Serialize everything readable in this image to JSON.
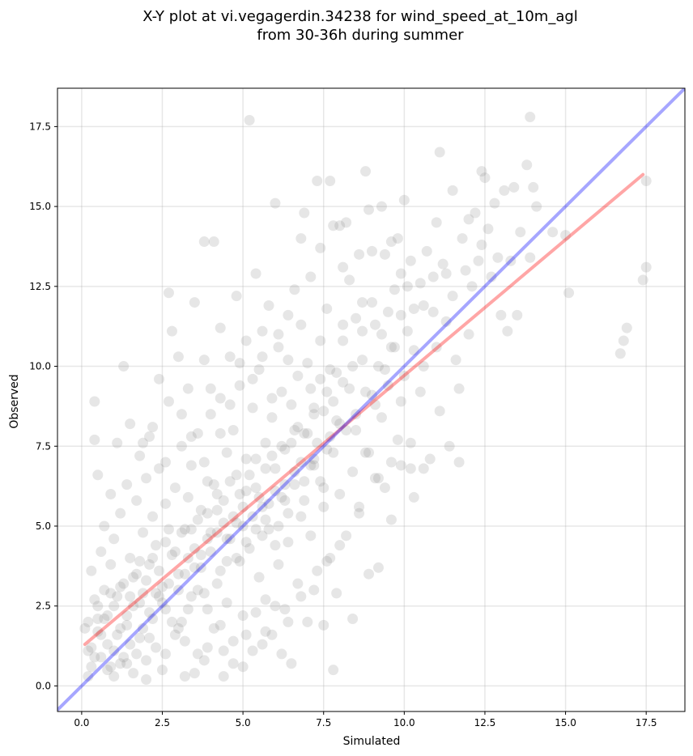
{
  "chart_data": {
    "type": "scatter",
    "title_line1": "X-Y plot at vi.vegagerdin.34238 for wind_speed_at_10m_agl",
    "title_line2": "from 30-36h during summer",
    "xlabel": "Simulated",
    "ylabel": "Observed",
    "xlim": [
      -0.75,
      18.7
    ],
    "ylim": [
      -0.8,
      18.7
    ],
    "xticks": [
      0.0,
      2.5,
      5.0,
      7.5,
      10.0,
      12.5,
      15.0,
      17.5
    ],
    "yticks": [
      0.0,
      2.5,
      5.0,
      7.5,
      10.0,
      12.5,
      15.0,
      17.5
    ],
    "xtick_labels": [
      "0.0",
      "2.5",
      "5.0",
      "7.5",
      "10.0",
      "12.5",
      "15.0",
      "17.5"
    ],
    "ytick_labels": [
      "0.0",
      "2.5",
      "5.0",
      "7.5",
      "10.0",
      "12.5",
      "15.0",
      "17.5"
    ],
    "grid": true,
    "point_color": "#808080",
    "identity_line": {
      "x": [
        -0.75,
        18.7
      ],
      "y": [
        -0.75,
        18.7
      ],
      "color": "#0000ff"
    },
    "fit_line": {
      "x": [
        0.1,
        17.4
      ],
      "y": [
        1.3,
        16.0
      ],
      "color": "#ff0000"
    },
    "points": [
      [
        0.1,
        1.8
      ],
      [
        0.2,
        0.3
      ],
      [
        0.2,
        2.0
      ],
      [
        0.3,
        1.2
      ],
      [
        0.3,
        3.6
      ],
      [
        0.4,
        0.9
      ],
      [
        0.4,
        8.9
      ],
      [
        0.4,
        7.7
      ],
      [
        0.5,
        2.5
      ],
      [
        0.5,
        6.6
      ],
      [
        0.6,
        4.2
      ],
      [
        0.6,
        1.6
      ],
      [
        0.7,
        3.0
      ],
      [
        0.7,
        5.0
      ],
      [
        0.8,
        0.5
      ],
      [
        0.8,
        2.2
      ],
      [
        0.9,
        6.0
      ],
      [
        0.9,
        3.8
      ],
      [
        1.0,
        1.1
      ],
      [
        1.0,
        4.6
      ],
      [
        1.1,
        2.8
      ],
      [
        1.1,
        7.6
      ],
      [
        1.2,
        0.7
      ],
      [
        1.2,
        5.4
      ],
      [
        1.3,
        10.0
      ],
      [
        1.3,
        3.2
      ],
      [
        1.4,
        1.9
      ],
      [
        1.4,
        6.3
      ],
      [
        1.5,
        8.2
      ],
      [
        1.5,
        4.0
      ],
      [
        1.6,
        2.5
      ],
      [
        1.6,
        0.4
      ],
      [
        1.7,
        5.8
      ],
      [
        1.7,
        3.5
      ],
      [
        1.8,
        7.2
      ],
      [
        1.8,
        1.5
      ],
      [
        1.9,
        4.8
      ],
      [
        1.9,
        2.9
      ],
      [
        2.0,
        6.5
      ],
      [
        2.0,
        0.8
      ],
      [
        2.1,
        3.8
      ],
      [
        2.1,
        7.8
      ],
      [
        2.2,
        2.1
      ],
      [
        2.2,
        5.3
      ],
      [
        2.3,
        1.2
      ],
      [
        2.3,
        4.4
      ],
      [
        2.4,
        9.6
      ],
      [
        2.4,
        6.8
      ],
      [
        2.5,
        3.1
      ],
      [
        2.5,
        0.5
      ],
      [
        2.6,
        5.7
      ],
      [
        2.6,
        2.4
      ],
      [
        2.7,
        8.9
      ],
      [
        2.7,
        12.3
      ],
      [
        2.8,
        11.1
      ],
      [
        2.8,
        4.1
      ],
      [
        2.9,
        1.6
      ],
      [
        2.9,
        6.2
      ],
      [
        3.0,
        3.5
      ],
      [
        3.0,
        10.3
      ],
      [
        3.1,
        2.0
      ],
      [
        3.1,
        7.5
      ],
      [
        3.2,
        4.9
      ],
      [
        3.2,
        0.3
      ],
      [
        3.3,
        9.3
      ],
      [
        3.3,
        5.9
      ],
      [
        3.4,
        2.8
      ],
      [
        3.4,
        6.9
      ],
      [
        3.5,
        12.0
      ],
      [
        3.5,
        4.3
      ],
      [
        3.6,
        1.0
      ],
      [
        3.6,
        7.9
      ],
      [
        3.7,
        3.7
      ],
      [
        3.7,
        5.5
      ],
      [
        3.8,
        13.9
      ],
      [
        3.8,
        10.2
      ],
      [
        3.9,
        2.4
      ],
      [
        3.9,
        6.4
      ],
      [
        4.0,
        4.8
      ],
      [
        4.0,
        8.5
      ],
      [
        4.1,
        13.9
      ],
      [
        4.1,
        1.8
      ],
      [
        4.2,
        6.0
      ],
      [
        4.2,
        3.2
      ],
      [
        4.3,
        11.2
      ],
      [
        4.3,
        9.0
      ],
      [
        4.4,
        5.1
      ],
      [
        4.4,
        0.3
      ],
      [
        4.5,
        7.3
      ],
      [
        4.5,
        2.6
      ],
      [
        4.6,
        10.3
      ],
      [
        4.6,
        4.6
      ],
      [
        4.7,
        8.0
      ],
      [
        4.7,
        1.4
      ],
      [
        4.8,
        6.6
      ],
      [
        4.8,
        12.2
      ],
      [
        4.9,
        3.9
      ],
      [
        4.9,
        9.4
      ],
      [
        5.0,
        5.0
      ],
      [
        5.0,
        2.2
      ],
      [
        5.1,
        10.8
      ],
      [
        5.1,
        7.1
      ],
      [
        5.2,
        17.7
      ],
      [
        5.2,
        4.3
      ],
      [
        5.3,
        8.7
      ],
      [
        5.3,
        1.1
      ],
      [
        5.4,
        12.9
      ],
      [
        5.4,
        6.2
      ],
      [
        5.5,
        3.4
      ],
      [
        5.5,
        9.9
      ],
      [
        5.6,
        5.6
      ],
      [
        5.6,
        11.1
      ],
      [
        5.7,
        7.6
      ],
      [
        5.7,
        2.7
      ],
      [
        5.8,
        11.9
      ],
      [
        5.8,
        4.9
      ],
      [
        5.9,
        8.4
      ],
      [
        5.9,
        1.6
      ],
      [
        6.0,
        15.1
      ],
      [
        6.0,
        6.8
      ],
      [
        6.1,
        3.8
      ],
      [
        6.1,
        10.6
      ],
      [
        6.2,
        5.9
      ],
      [
        6.2,
        9.2
      ],
      [
        6.3,
        2.4
      ],
      [
        6.3,
        7.4
      ],
      [
        6.4,
        11.6
      ],
      [
        6.4,
        4.5
      ],
      [
        6.5,
        0.7
      ],
      [
        6.5,
        8.8
      ],
      [
        6.6,
        6.3
      ],
      [
        6.6,
        12.4
      ],
      [
        6.7,
        3.2
      ],
      [
        6.7,
        9.7
      ],
      [
        6.8,
        14.0
      ],
      [
        6.8,
        5.3
      ],
      [
        6.9,
        14.8
      ],
      [
        6.9,
        7.9
      ],
      [
        7.0,
        2.0
      ],
      [
        7.0,
        10.1
      ],
      [
        7.1,
        4.7
      ],
      [
        7.1,
        12.8
      ],
      [
        7.2,
        6.9
      ],
      [
        7.2,
        8.5
      ],
      [
        7.3,
        15.8
      ],
      [
        7.3,
        3.6
      ],
      [
        7.4,
        13.7
      ],
      [
        7.4,
        9.6
      ],
      [
        7.5,
        5.6
      ],
      [
        7.5,
        1.9
      ],
      [
        7.6,
        11.8
      ],
      [
        7.6,
        7.4
      ],
      [
        7.7,
        15.8
      ],
      [
        7.7,
        4.0
      ],
      [
        7.8,
        14.4
      ],
      [
        7.8,
        0.5
      ],
      [
        7.9,
        2.9
      ],
      [
        7.9,
        8.3
      ],
      [
        8.0,
        14.4
      ],
      [
        8.0,
        6.0
      ],
      [
        8.1,
        13.1
      ],
      [
        8.1,
        10.8
      ],
      [
        8.2,
        14.5
      ],
      [
        8.2,
        4.7
      ],
      [
        8.3,
        9.3
      ],
      [
        8.3,
        12.7
      ],
      [
        8.4,
        2.1
      ],
      [
        8.4,
        6.7
      ],
      [
        8.5,
        11.5
      ],
      [
        8.5,
        8.0
      ],
      [
        8.6,
        13.5
      ],
      [
        8.6,
        5.4
      ],
      [
        8.7,
        10.2
      ],
      [
        8.7,
        12.0
      ],
      [
        8.8,
        16.1
      ],
      [
        8.8,
        7.3
      ],
      [
        8.9,
        14.9
      ],
      [
        8.9,
        3.5
      ],
      [
        9.0,
        9.1
      ],
      [
        9.0,
        13.6
      ],
      [
        9.1,
        6.5
      ],
      [
        9.1,
        11.3
      ],
      [
        9.2,
        3.7
      ],
      [
        9.2,
        10.0
      ],
      [
        9.3,
        15.0
      ],
      [
        9.3,
        8.4
      ],
      [
        9.4,
        13.5
      ],
      [
        9.4,
        6.2
      ],
      [
        9.5,
        11.7
      ],
      [
        9.5,
        9.4
      ],
      [
        9.6,
        7.0
      ],
      [
        9.6,
        13.9
      ],
      [
        9.7,
        12.4
      ],
      [
        9.7,
        10.6
      ],
      [
        9.8,
        14.0
      ],
      [
        9.8,
        7.7
      ],
      [
        9.9,
        8.9
      ],
      [
        9.9,
        12.9
      ],
      [
        10.0,
        15.2
      ],
      [
        10.0,
        9.7
      ],
      [
        10.1,
        11.1
      ],
      [
        10.1,
        12.5
      ],
      [
        10.2,
        6.8
      ],
      [
        10.2,
        13.3
      ],
      [
        10.3,
        5.9
      ],
      [
        10.3,
        10.5
      ],
      [
        10.5,
        9.2
      ],
      [
        10.5,
        12.6
      ],
      [
        10.6,
        11.9
      ],
      [
        10.7,
        13.6
      ],
      [
        10.8,
        7.1
      ],
      [
        10.9,
        12.8
      ],
      [
        11.0,
        10.6
      ],
      [
        11.0,
        14.5
      ],
      [
        11.1,
        16.7
      ],
      [
        11.1,
        8.6
      ],
      [
        11.2,
        13.2
      ],
      [
        11.3,
        11.4
      ],
      [
        11.4,
        7.5
      ],
      [
        11.5,
        15.5
      ],
      [
        11.5,
        12.2
      ],
      [
        11.6,
        10.2
      ],
      [
        11.7,
        9.3
      ],
      [
        11.7,
        7.0
      ],
      [
        11.8,
        14.0
      ],
      [
        11.9,
        13.0
      ],
      [
        12.0,
        14.6
      ],
      [
        12.0,
        11.0
      ],
      [
        12.1,
        12.5
      ],
      [
        12.2,
        14.8
      ],
      [
        12.3,
        13.3
      ],
      [
        12.4,
        16.1
      ],
      [
        12.4,
        13.8
      ],
      [
        12.5,
        15.9
      ],
      [
        12.6,
        14.3
      ],
      [
        12.7,
        12.8
      ],
      [
        12.8,
        15.1
      ],
      [
        12.9,
        13.4
      ],
      [
        13.0,
        11.6
      ],
      [
        13.1,
        15.5
      ],
      [
        13.2,
        11.1
      ],
      [
        13.3,
        13.3
      ],
      [
        13.4,
        15.6
      ],
      [
        13.5,
        11.6
      ],
      [
        13.6,
        14.2
      ],
      [
        13.8,
        16.3
      ],
      [
        13.9,
        17.8
      ],
      [
        13.9,
        13.4
      ],
      [
        14.0,
        15.6
      ],
      [
        14.1,
        15.0
      ],
      [
        14.6,
        14.2
      ],
      [
        15.0,
        14.1
      ],
      [
        15.1,
        12.3
      ],
      [
        16.7,
        10.4
      ],
      [
        16.8,
        10.8
      ],
      [
        16.9,
        11.2
      ],
      [
        17.4,
        12.7
      ],
      [
        17.5,
        13.1
      ],
      [
        17.5,
        15.8
      ],
      [
        0.2,
        1.1
      ],
      [
        0.3,
        0.6
      ],
      [
        0.4,
        2.7
      ],
      [
        0.5,
        1.7
      ],
      [
        0.6,
        0.9
      ],
      [
        0.7,
        2.1
      ],
      [
        0.8,
        1.3
      ],
      [
        0.9,
        0.6
      ],
      [
        1.0,
        2.5
      ],
      [
        1.1,
        1.6
      ],
      [
        1.2,
        3.1
      ],
      [
        1.3,
        0.9
      ],
      [
        1.4,
        2.2
      ],
      [
        1.5,
        1.3
      ],
      [
        1.6,
        3.4
      ],
      [
        1.7,
        1.0
      ],
      [
        1.8,
        2.6
      ],
      [
        1.9,
        1.8
      ],
      [
        2.0,
        3.3
      ],
      [
        2.1,
        2.3
      ],
      [
        2.2,
        4.0
      ],
      [
        2.3,
        2.9
      ],
      [
        2.4,
        3.6
      ],
      [
        2.5,
        2.6
      ],
      [
        2.6,
        4.5
      ],
      [
        2.7,
        3.2
      ],
      [
        2.8,
        2.0
      ],
      [
        2.9,
        4.2
      ],
      [
        3.0,
        3.0
      ],
      [
        3.1,
        4.8
      ],
      [
        3.2,
        3.5
      ],
      [
        3.3,
        2.4
      ],
      [
        3.4,
        4.9
      ],
      [
        3.5,
        3.7
      ],
      [
        3.6,
        5.2
      ],
      [
        3.7,
        4.1
      ],
      [
        3.8,
        2.9
      ],
      [
        3.9,
        5.4
      ],
      [
        4.0,
        4.2
      ],
      [
        4.1,
        6.3
      ],
      [
        4.2,
        4.8
      ],
      [
        4.3,
        3.6
      ],
      [
        4.4,
        5.8
      ],
      [
        4.5,
        4.6
      ],
      [
        4.6,
        6.4
      ],
      [
        4.7,
        5.3
      ],
      [
        4.8,
        4.0
      ],
      [
        4.9,
        6.0
      ],
      [
        5.0,
        5.6
      ],
      [
        5.1,
        4.5
      ],
      [
        5.2,
        6.6
      ],
      [
        5.3,
        5.3
      ],
      [
        5.4,
        7.1
      ],
      [
        5.5,
        5.9
      ],
      [
        5.6,
        4.7
      ],
      [
        5.7,
        6.8
      ],
      [
        5.8,
        5.7
      ],
      [
        5.9,
        7.2
      ],
      [
        6.0,
        6.1
      ],
      [
        6.1,
        5.0
      ],
      [
        6.2,
        7.5
      ],
      [
        6.3,
        6.3
      ],
      [
        6.4,
        5.4
      ],
      [
        6.5,
        7.6
      ],
      [
        6.6,
        6.7
      ],
      [
        6.7,
        8.1
      ],
      [
        6.8,
        7.0
      ],
      [
        6.9,
        5.8
      ],
      [
        7.0,
        7.9
      ],
      [
        7.1,
        6.9
      ],
      [
        7.2,
        8.7
      ],
      [
        7.3,
        7.6
      ],
      [
        7.4,
        6.4
      ],
      [
        7.5,
        8.6
      ],
      [
        7.6,
        9.2
      ],
      [
        7.7,
        7.8
      ],
      [
        7.8,
        8.9
      ],
      [
        7.9,
        9.8
      ],
      [
        8.0,
        8.2
      ],
      [
        8.1,
        9.5
      ],
      [
        0.5,
        2.1
      ],
      [
        0.9,
        2.9
      ],
      [
        1.2,
        1.8
      ],
      [
        1.5,
        2.8
      ],
      [
        1.8,
        3.9
      ],
      [
        2.1,
        1.5
      ],
      [
        2.4,
        2.8
      ],
      [
        2.7,
        4.9
      ],
      [
        3.0,
        1.8
      ],
      [
        3.3,
        4.0
      ],
      [
        3.6,
        3.0
      ],
      [
        3.9,
        4.6
      ],
      [
        4.2,
        5.5
      ],
      [
        4.5,
        3.9
      ],
      [
        4.8,
        5.1
      ],
      [
        5.1,
        6.1
      ],
      [
        5.4,
        4.9
      ],
      [
        5.7,
        5.2
      ],
      [
        6.0,
        4.4
      ],
      [
        6.3,
        5.8
      ],
      [
        6.6,
        8.0
      ],
      [
        6.9,
        6.4
      ],
      [
        7.2,
        7.1
      ],
      [
        7.5,
        6.2
      ],
      [
        7.8,
        7.3
      ],
      [
        8.2,
        8.0
      ],
      [
        8.5,
        8.5
      ],
      [
        8.8,
        9.2
      ],
      [
        9.1,
        8.8
      ],
      [
        9.4,
        9.9
      ],
      [
        1.0,
        0.3
      ],
      [
        1.4,
        0.7
      ],
      [
        2.0,
        0.2
      ],
      [
        2.6,
        1.0
      ],
      [
        3.2,
        1.4
      ],
      [
        3.8,
        0.8
      ],
      [
        4.4,
        1.1
      ],
      [
        5.0,
        0.6
      ],
      [
        5.6,
        1.3
      ],
      [
        6.2,
        1.0
      ],
      [
        1.9,
        7.6
      ],
      [
        2.2,
        8.1
      ],
      [
        2.6,
        7.0
      ],
      [
        3.1,
        8.5
      ],
      [
        3.4,
        7.8
      ],
      [
        3.8,
        7.0
      ],
      [
        4.0,
        9.3
      ],
      [
        4.3,
        7.9
      ],
      [
        4.6,
        8.8
      ],
      [
        4.9,
        10.1
      ],
      [
        5.3,
        9.6
      ],
      [
        5.6,
        10.3
      ],
      [
        5.9,
        9.0
      ],
      [
        6.1,
        11.0
      ],
      [
        6.4,
        10.2
      ],
      [
        6.8,
        11.3
      ],
      [
        7.1,
        9.3
      ],
      [
        7.4,
        10.8
      ],
      [
        7.7,
        9.9
      ],
      [
        8.1,
        11.3
      ],
      [
        8.4,
        10.0
      ],
      [
        8.7,
        11.1
      ],
      [
        9.0,
        12.0
      ],
      [
        9.3,
        11.0
      ],
      [
        9.6,
        10.6
      ],
      [
        9.9,
        11.6
      ],
      [
        10.3,
        11.8
      ],
      [
        10.6,
        10.0
      ],
      [
        10.9,
        11.7
      ],
      [
        11.3,
        12.9
      ],
      [
        8.9,
        7.3
      ],
      [
        9.2,
        6.5
      ],
      [
        9.6,
        5.2
      ],
      [
        9.9,
        6.9
      ],
      [
        10.2,
        7.6
      ],
      [
        10.6,
        6.8
      ],
      [
        8.6,
        5.6
      ],
      [
        8.0,
        4.4
      ],
      [
        7.6,
        3.9
      ],
      [
        7.2,
        3.0
      ],
      [
        6.8,
        2.8
      ],
      [
        6.4,
        2.0
      ],
      [
        6.0,
        2.5
      ],
      [
        5.7,
        1.7
      ],
      [
        5.4,
        2.3
      ],
      [
        5.1,
        1.6
      ],
      [
        4.7,
        0.7
      ],
      [
        4.3,
        1.9
      ],
      [
        3.9,
        1.2
      ],
      [
        3.5,
        0.4
      ]
    ]
  }
}
